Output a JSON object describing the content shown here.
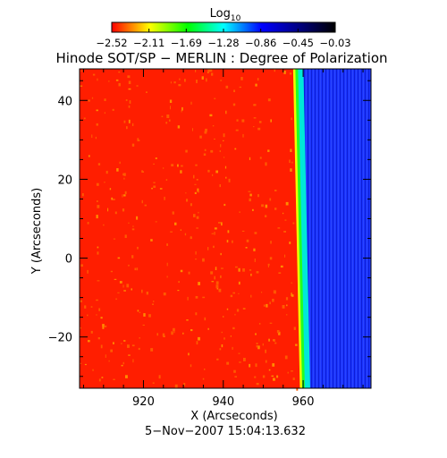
{
  "chart_data": {
    "type": "heatmap",
    "title": "Hinode SOT/SP − MERLIN : Degree of Polarization",
    "xlabel": "X (Arcseconds)",
    "ylabel": "Y (Arcseconds)",
    "timestamp": "5−Nov−2007 15:04:13.632",
    "xlim": [
      904,
      977
    ],
    "ylim": [
      -33,
      48
    ],
    "x_ticks": [
      920,
      940,
      960
    ],
    "x_tick_labels": [
      "920",
      "940",
      "960"
    ],
    "y_ticks": [
      -20,
      0,
      20,
      40
    ],
    "y_tick_labels": [
      "−20",
      "0",
      "20",
      "40"
    ],
    "colorbar": {
      "label": "Log",
      "label_subscript": "10",
      "range": [
        -2.52,
        -0.03
      ],
      "tick_labels": [
        "−2.52",
        "−2.11",
        "−1.69",
        "−1.28",
        "−0.86",
        "−0.45",
        "−0.03"
      ],
      "colors": [
        "#ff0000",
        "#ffff00",
        "#00ff00",
        "#00ffff",
        "#0000ff",
        "#000080",
        "#000000"
      ]
    },
    "field": {
      "limb_x_top": 957.6,
      "limb_x_bottom": 959.3,
      "disk_value": -2.52,
      "offlimb_value": -0.86
    }
  }
}
